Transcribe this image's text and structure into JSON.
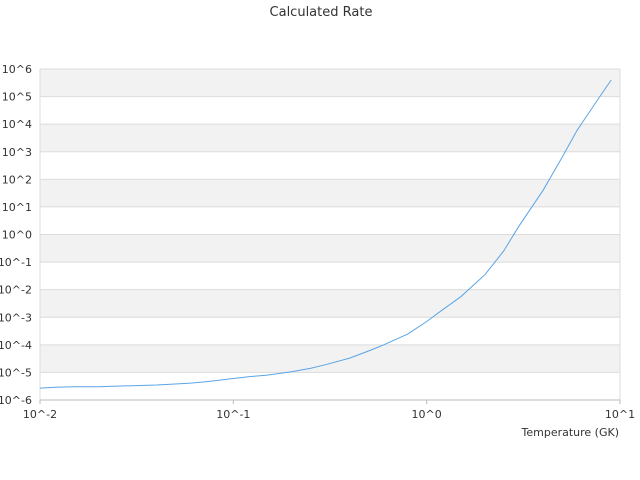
{
  "chart_data": {
    "type": "line",
    "title": "Calculated Rate",
    "xlabel": "Temperature (GK)",
    "ylabel": "",
    "x_scale": "log",
    "y_scale": "log",
    "xlim": [
      0.01,
      10
    ],
    "ylim": [
      1e-06,
      1000000.0
    ],
    "x_ticks": [
      {
        "value": 0.01,
        "label": "10^-2"
      },
      {
        "value": 0.1,
        "label": "10^-1"
      },
      {
        "value": 1,
        "label": "10^0"
      },
      {
        "value": 10,
        "label": "10^1"
      }
    ],
    "y_ticks": [
      {
        "value": 1000000.0,
        "label": "10^6"
      },
      {
        "value": 100000.0,
        "label": "10^5"
      },
      {
        "value": 10000.0,
        "label": "10^4"
      },
      {
        "value": 1000.0,
        "label": "10^3"
      },
      {
        "value": 100.0,
        "label": "10^2"
      },
      {
        "value": 10.0,
        "label": "10^1"
      },
      {
        "value": 1,
        "label": "10^0"
      },
      {
        "value": 0.1,
        "label": "10^-1"
      },
      {
        "value": 0.01,
        "label": "10^-2"
      },
      {
        "value": 0.001,
        "label": "10^-3"
      },
      {
        "value": 0.0001,
        "label": "10^-4"
      },
      {
        "value": 1e-05,
        "label": "10^-5"
      },
      {
        "value": 1e-06,
        "label": "10^-6"
      }
    ],
    "grid": "horizontal alternating bands",
    "legend": "none",
    "colors": {
      "line": "#5aa5e6",
      "band": "#f2f2f2",
      "gridline": "#dcdcdc"
    },
    "series": [
      {
        "x": [
          0.01,
          0.012,
          0.015,
          0.02,
          0.025,
          0.03,
          0.04,
          0.05,
          0.06,
          0.07,
          0.08,
          0.1,
          0.12,
          0.15,
          0.2,
          0.25,
          0.3,
          0.4,
          0.5,
          0.6,
          0.8,
          1.0,
          1.2,
          1.5,
          2.0,
          2.5,
          3.0,
          4.0,
          5.0,
          6.0,
          7.0,
          8.0,
          9.0
        ],
        "y": [
          2.7e-06,
          2.9e-06,
          3e-06,
          3e-06,
          3.2e-06,
          3.3e-06,
          3.5e-06,
          3.8e-06,
          4.1e-06,
          4.5e-06,
          5e-06,
          6e-06,
          7e-06,
          8e-06,
          1.05e-05,
          1.4e-05,
          1.9e-05,
          3.3e-05,
          6e-05,
          0.0001,
          0.00025,
          0.0007,
          0.0018,
          0.0055,
          0.035,
          0.25,
          2.0,
          40,
          600,
          6000,
          30000.0,
          120000.0,
          400000.0
        ]
      }
    ]
  }
}
